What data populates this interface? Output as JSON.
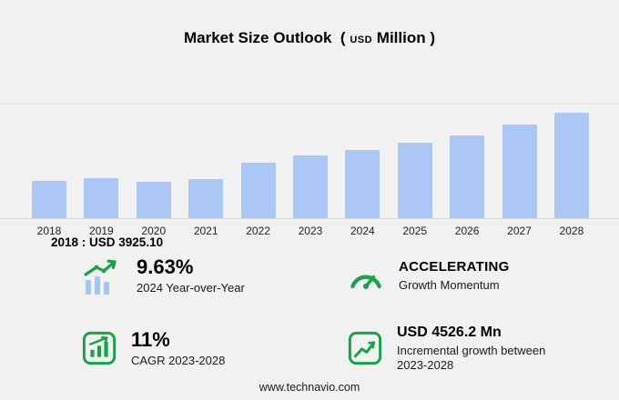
{
  "title": {
    "main": "Market Size Outlook",
    "open": "(",
    "unit_small": "USD",
    "unit": "Million",
    "close": ")"
  },
  "chart_data": {
    "type": "bar",
    "title": "Market Size Outlook (USD Million)",
    "xlabel": "",
    "ylabel": "USD Million",
    "categories": [
      "2018",
      "2019",
      "2020",
      "2021",
      "2022",
      "2023",
      "2024",
      "2025",
      "2026",
      "2027",
      "2028"
    ],
    "values": [
      3925.1,
      4150,
      3860,
      4060,
      5860,
      6533.9,
      7163.1,
      7900,
      8700,
      9800,
      11060.1
    ],
    "ylim": [
      0,
      11500
    ],
    "grid": "single top gridline and baseline only",
    "legend": "none",
    "bar_color": "#abc7f6",
    "annotation": "2018 : USD 3925.10"
  },
  "annotation": {
    "text": "2018 : USD 3925.10"
  },
  "stats": [
    {
      "icon": "growth-arrow-icon",
      "value": "9.63%",
      "label": "2024 Year-over-Year"
    },
    {
      "icon": "gauge-icon",
      "value": "ACCELERATING",
      "label": "Growth Momentum"
    },
    {
      "icon": "bar-chart-box-icon",
      "value": "11%",
      "label": "CAGR 2023-2028"
    },
    {
      "icon": "line-chart-box-icon",
      "value": "USD 4526.2 Mn",
      "label": "Incremental growth between 2023-2028"
    }
  ],
  "colors": {
    "background": "#f1f1f2",
    "bar": "#abc7f6",
    "accent_green": "#17a34a",
    "light_green": "#8fd6a4",
    "text": "#000000"
  },
  "footer": {
    "url": "www.technavio.com"
  }
}
